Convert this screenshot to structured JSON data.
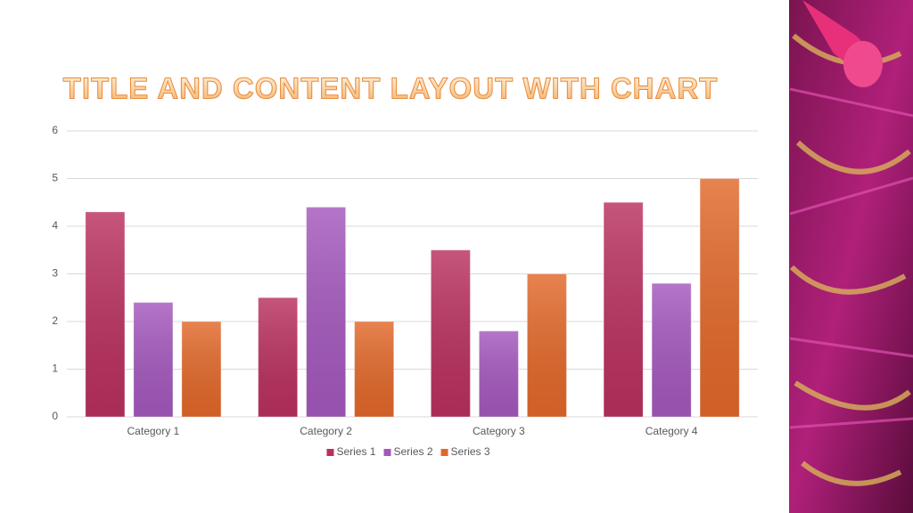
{
  "chart_data": {
    "type": "bar",
    "title": "TITLE AND CONTENT LAYOUT WITH CHART",
    "categories": [
      "Category 1",
      "Category 2",
      "Category 3",
      "Category 4"
    ],
    "series": [
      {
        "name": "Series 1",
        "color": "#b9305f",
        "values": [
          4.3,
          2.5,
          3.5,
          4.5
        ]
      },
      {
        "name": "Series 2",
        "color": "#a458bd",
        "values": [
          2.4,
          4.4,
          1.8,
          2.8
        ]
      },
      {
        "name": "Series 3",
        "color": "#e2682a",
        "values": [
          2,
          2,
          3,
          5
        ]
      }
    ],
    "ylim": [
      0,
      6
    ],
    "yticks": [
      0,
      1,
      2,
      3,
      4,
      5,
      6
    ],
    "grid": true,
    "legend": "bottom"
  }
}
